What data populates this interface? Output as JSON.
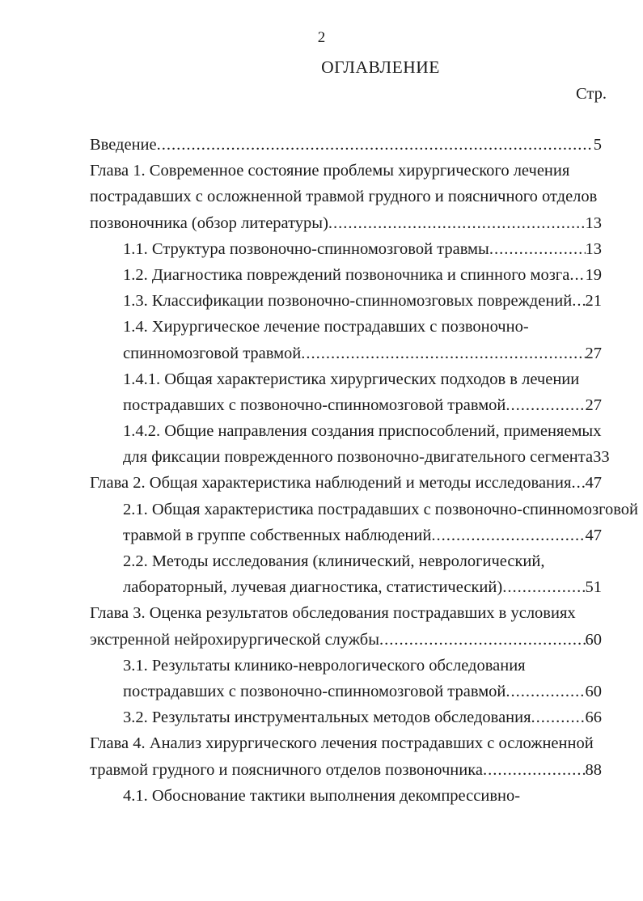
{
  "page": {
    "number": "2",
    "title": "ОГЛАВЛЕНИЕ",
    "page_column_label": "Стр."
  },
  "colors": {
    "background": "#ffffff",
    "text": "#1a1a1a"
  },
  "toc": {
    "entries": [
      {
        "indent": 0,
        "text": "Введение",
        "page": "5"
      },
      {
        "indent": 0,
        "text": "Глава 1. Современное состояние проблемы хирургического лечения",
        "page": ""
      },
      {
        "indent": 0,
        "text": "пострадавших с осложненной травмой грудного и поясничного отделов",
        "page": ""
      },
      {
        "indent": 0,
        "text": "позвоночника (обзор литературы)",
        "page": "13"
      },
      {
        "indent": 1,
        "text": "1.1. Структура позвоночно-спинномозговой травмы",
        "page": "13"
      },
      {
        "indent": 1,
        "text": "1.2. Диагностика повреждений позвоночника и спинного мозга",
        "page": "19"
      },
      {
        "indent": 1,
        "text": "1.3. Классификации позвоночно-спинномозговых повреждений",
        "page": "21"
      },
      {
        "indent": 1,
        "text": "1.4. Хирургическое лечение пострадавших с позвоночно-",
        "page": ""
      },
      {
        "indent": 1,
        "text": "спинномозговой травмой",
        "page": "27"
      },
      {
        "indent": 1,
        "text": "1.4.1. Общая характеристика хирургических подходов в лечении",
        "page": ""
      },
      {
        "indent": 1,
        "text": "пострадавших с позвоночно-спинномозговой травмой",
        "page": "27"
      },
      {
        "indent": 1,
        "text": "1.4.2. Общие направления создания приспособлений, применяемых",
        "page": ""
      },
      {
        "indent": 1,
        "text": "для фиксации поврежденного позвоночно-двигательного сегмента",
        "page": "33"
      },
      {
        "indent": 0,
        "text": "Глава 2. Общая характеристика наблюдений и методы исследования",
        "page": "47"
      },
      {
        "indent": 1,
        "text": "2.1. Общая характеристика пострадавших с позвоночно-спинномозговой",
        "page": ""
      },
      {
        "indent": 1,
        "text": "травмой в группе собственных наблюдений",
        "page": "47"
      },
      {
        "indent": 1,
        "text": "2.2. Методы исследования (клинический, неврологический,",
        "page": ""
      },
      {
        "indent": 1,
        "text": "лабораторный, лучевая диагностика, статистический)",
        "page": "51"
      },
      {
        "indent": 0,
        "text": "Глава 3. Оценка результатов обследования пострадавших в условиях",
        "page": ""
      },
      {
        "indent": 0,
        "text": "экстренной нейрохирургической службы",
        "page": "60"
      },
      {
        "indent": 1,
        "text": "3.1. Результаты клинико-неврологического обследования",
        "page": ""
      },
      {
        "indent": 1,
        "text": "пострадавших с позвоночно-спинномозговой травмой",
        "page": "60"
      },
      {
        "indent": 1,
        "text": "3.2. Результаты инструментальных методов обследования",
        "page": "66"
      },
      {
        "indent": 0,
        "text": "Глава 4. Анализ хирургического лечения пострадавших с осложненной",
        "page": ""
      },
      {
        "indent": 0,
        "text": "травмой грудного и поясничного отделов позвоночника",
        "page": "88"
      },
      {
        "indent": 1,
        "text": "4.1. Обоснование тактики выполнения декомпрессивно-",
        "page": ""
      }
    ]
  }
}
